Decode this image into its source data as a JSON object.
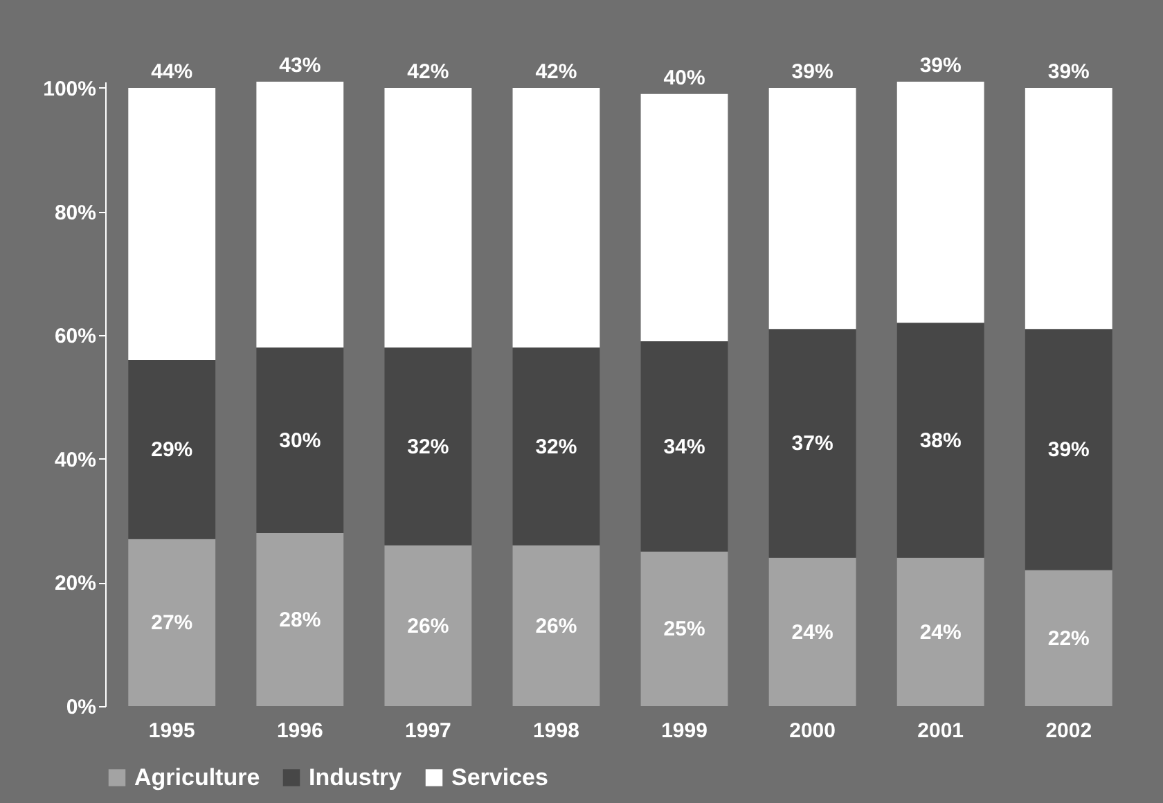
{
  "chart_data": {
    "type": "bar",
    "stacked": true,
    "categories": [
      "1995",
      "1996",
      "1997",
      "1998",
      "1999",
      "2000",
      "2001",
      "2002"
    ],
    "series": [
      {
        "name": "Agriculture",
        "color": "#a3a3a3",
        "values": [
          27,
          28,
          26,
          26,
          25,
          24,
          24,
          22
        ],
        "value_labels": [
          "27%",
          "28%",
          "26%",
          "26%",
          "25%",
          "24%",
          "24%",
          "22%"
        ]
      },
      {
        "name": "Industry",
        "color": "#474747",
        "values": [
          29,
          30,
          32,
          32,
          34,
          37,
          38,
          39
        ],
        "value_labels": [
          "29%",
          "30%",
          "32%",
          "32%",
          "34%",
          "37%",
          "38%",
          "39%"
        ]
      },
      {
        "name": "Services",
        "color": "#ffffff",
        "values": [
          44,
          43,
          42,
          42,
          40,
          39,
          39,
          39
        ],
        "value_labels": [
          "44%",
          "43%",
          "42%",
          "42%",
          "40%",
          "39%",
          "39%",
          "39%"
        ]
      }
    ],
    "ylim": [
      0,
      101
    ],
    "yticks": [
      {
        "value": 0,
        "label": "0%"
      },
      {
        "value": 20,
        "label": "20%"
      },
      {
        "value": 40,
        "label": "40%"
      },
      {
        "value": 60,
        "label": "60%"
      },
      {
        "value": 80,
        "label": "80%"
      },
      {
        "value": 100,
        "label": "100%"
      }
    ],
    "legend": "bottom",
    "grid": false
  }
}
